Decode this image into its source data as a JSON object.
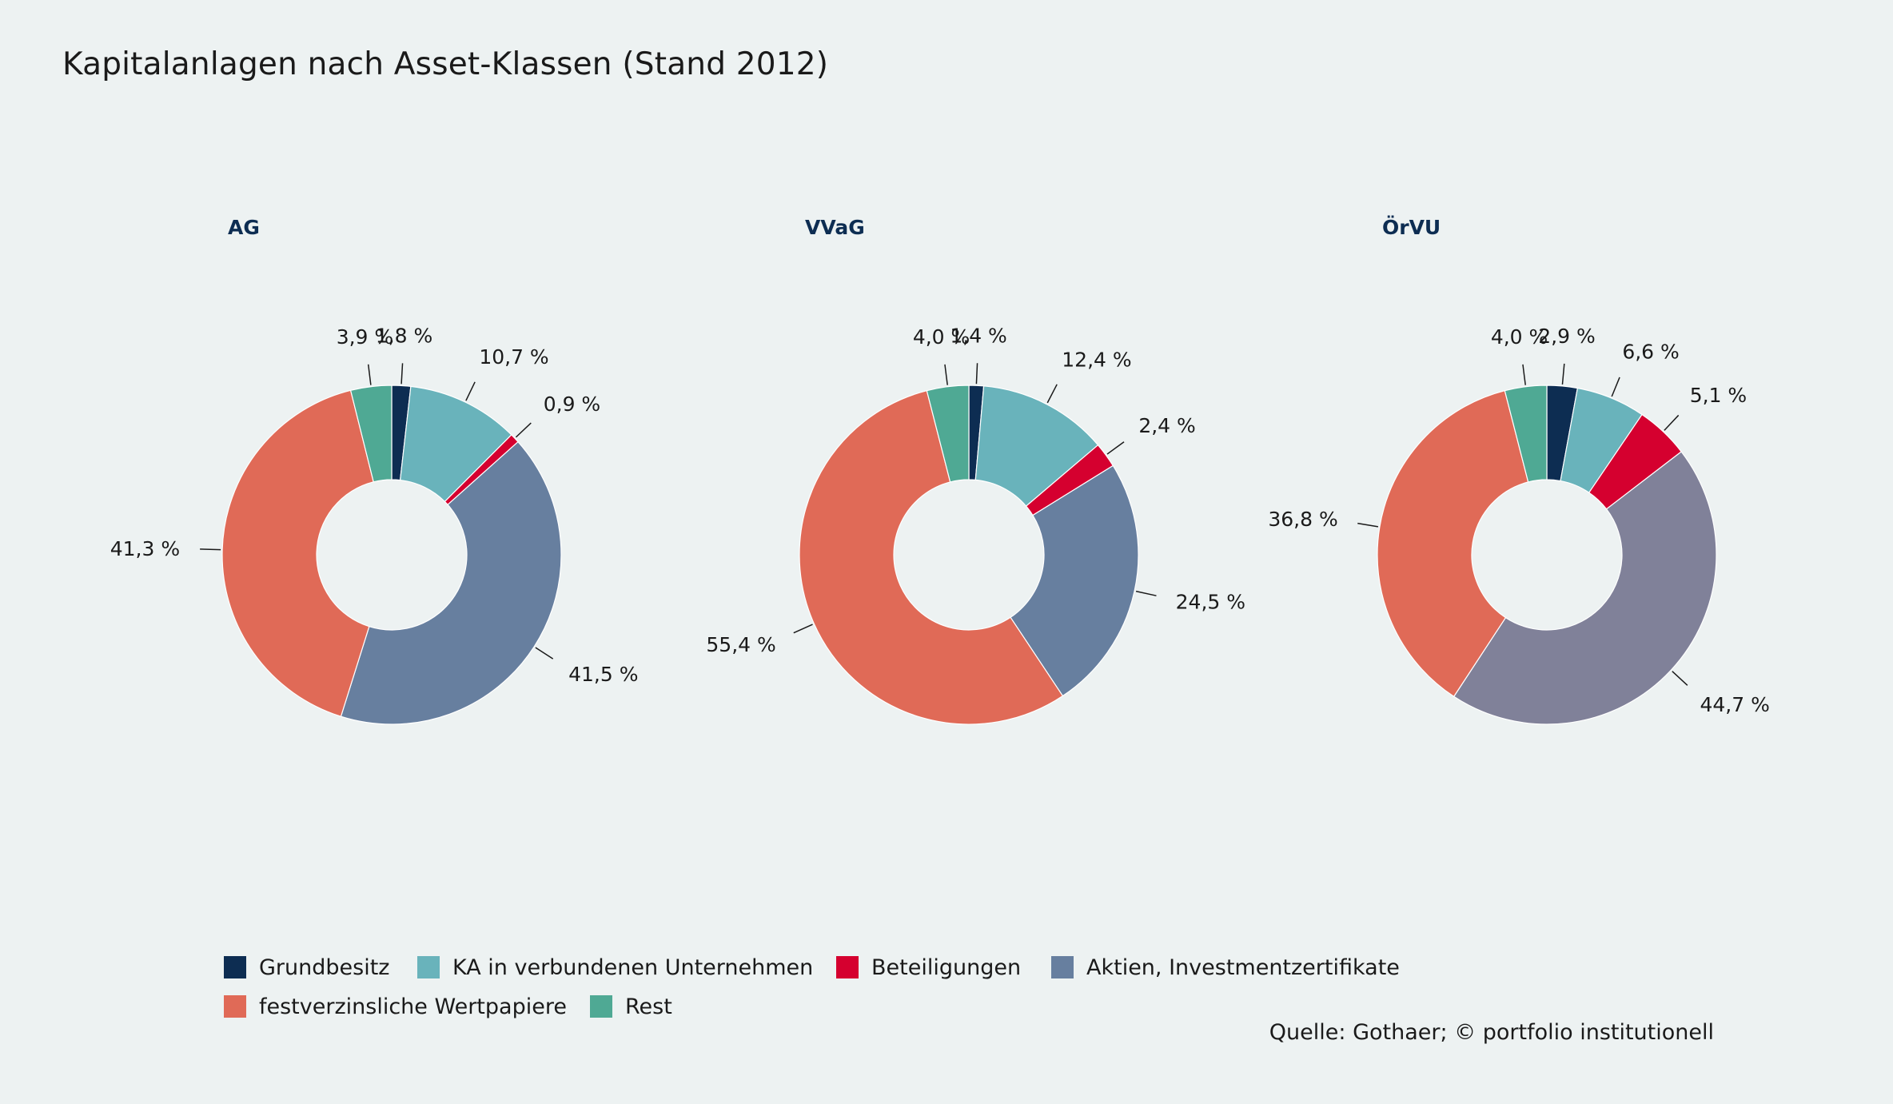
{
  "title": "Kapitalanlagen nach Asset-Klassen (Stand 2012)",
  "source": "Quelle: Gothaer; © portfolio institutionell",
  "categories": [
    {
      "key": "grundbesitz",
      "label": "Grundbesitz",
      "color": "#0d2d52"
    },
    {
      "key": "ka",
      "label": "KA in verbundenen Unternehmen",
      "color": "#69b3bb"
    },
    {
      "key": "beteiligungen",
      "label": "Beteiligungen",
      "color": "#d5002f"
    },
    {
      "key": "aktien",
      "label": "Aktien, Investmentzertifikate",
      "color": "#677f9f"
    },
    {
      "key": "festverzinslich",
      "label": "festverzinsliche Wertpapiere",
      "color": "#e06a57"
    },
    {
      "key": "rest",
      "label": "Rest",
      "color": "#4fa994"
    }
  ],
  "chart_data": [
    {
      "type": "pie",
      "title": "AG",
      "categories": [
        "Grundbesitz",
        "KA in verbundenen Unternehmen",
        "Beteiligungen",
        "Aktien, Investmentzertifikate",
        "festverzinsliche Wertpapiere",
        "Rest"
      ],
      "values": [
        1.8,
        10.7,
        0.9,
        41.5,
        41.3,
        3.9
      ],
      "labels": [
        "1,8 %",
        "10,7 %",
        "0,9 %",
        "41,5 %",
        "41,3 %",
        "3,9 %"
      ],
      "colors": [
        "#0d2d52",
        "#69b3bb",
        "#d5002f",
        "#677f9f",
        "#e06a57",
        "#4fa994"
      ]
    },
    {
      "type": "pie",
      "title": "VVaG",
      "categories": [
        "Grundbesitz",
        "KA in verbundenen Unternehmen",
        "Beteiligungen",
        "Aktien, Investmentzertifikate",
        "festverzinsliche Wertpapiere",
        "Rest"
      ],
      "values": [
        1.4,
        12.4,
        2.4,
        24.5,
        55.4,
        4.0
      ],
      "labels": [
        "1,4 %",
        "12,4 %",
        "2,4 %",
        "24,5 %",
        "55,4 %",
        "4,0 %"
      ],
      "colors": [
        "#0d2d52",
        "#69b3bb",
        "#d5002f",
        "#677f9f",
        "#e06a57",
        "#4fa994"
      ]
    },
    {
      "type": "pie",
      "title": "ÖrVU",
      "categories": [
        "Grundbesitz",
        "KA in verbundenen Unternehmen",
        "Beteiligungen",
        "Aktien, Investmentzertifikate",
        "festverzinsliche Wertpapiere",
        "Rest"
      ],
      "values": [
        2.9,
        6.6,
        5.1,
        44.7,
        36.8,
        4.0
      ],
      "labels": [
        "2,9 %",
        "6,6 %",
        "5,1 %",
        "44,7 %",
        "36,8 %",
        "4,0 %"
      ],
      "colors": [
        "#0d2d52",
        "#69b3bb",
        "#d5002f",
        "#808199",
        "#e06a57",
        "#4fa994"
      ]
    }
  ]
}
